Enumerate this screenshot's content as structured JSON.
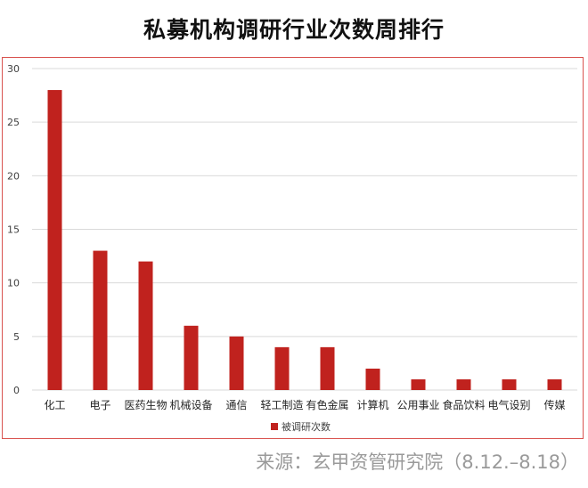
{
  "title": "私募机构调研行业次数周排行",
  "source": "来源：玄甲资管研究院（8.12.–8.18）",
  "colors": {
    "bar": "#C0221E",
    "frame": "#D9534F",
    "grid": "#D9D9D9",
    "axis_text": "#404040"
  },
  "chart_data": {
    "type": "bar",
    "categories": [
      "化工",
      "电子",
      "医药生物",
      "机械设备",
      "通信",
      "轻工制造",
      "有色金属",
      "计算机",
      "公用事业",
      "食品饮料",
      "电气设别",
      "传媒"
    ],
    "series": [
      {
        "name": "被调研次数",
        "values": [
          28,
          13,
          12,
          6,
          5,
          4,
          4,
          2,
          1,
          1,
          1,
          1
        ]
      }
    ],
    "yticks": [
      0,
      5,
      10,
      15,
      20,
      25,
      30
    ],
    "ylim": [
      0,
      30
    ],
    "grid": true,
    "legend_position": "bottom"
  }
}
